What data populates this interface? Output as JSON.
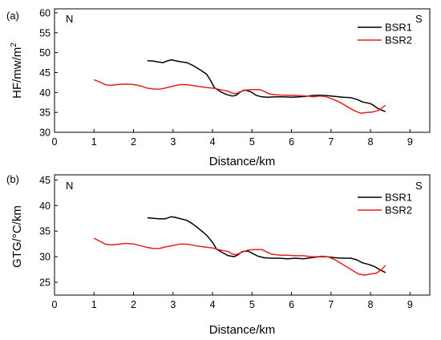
{
  "chart_data": [
    {
      "type": "line",
      "panel_label": "(a)",
      "ylabel": "HF/mw/m",
      "ylabel_sup": "2",
      "xlabel": "Distance/km",
      "left_marker": "N",
      "right_marker": "S",
      "xlim": [
        0,
        9.5
      ],
      "ylim": [
        30,
        61
      ],
      "xticks": [
        0,
        1,
        2,
        3,
        4,
        5,
        6,
        7,
        8,
        9
      ],
      "yticks": [
        30,
        35,
        40,
        45,
        50,
        55,
        60
      ],
      "legend_position": "top-right",
      "series": [
        {
          "name": "BSR1",
          "color": "#000000",
          "points": [
            [
              2.35,
              48.0
            ],
            [
              2.5,
              47.9
            ],
            [
              2.6,
              47.7
            ],
            [
              2.75,
              47.5
            ],
            [
              2.85,
              47.9
            ],
            [
              2.95,
              48.2
            ],
            [
              3.05,
              48.0
            ],
            [
              3.2,
              47.7
            ],
            [
              3.35,
              47.5
            ],
            [
              3.5,
              46.8
            ],
            [
              3.7,
              45.6
            ],
            [
              3.85,
              44.6
            ],
            [
              3.95,
              43.0
            ],
            [
              4.05,
              41.2
            ],
            [
              4.2,
              40.2
            ],
            [
              4.35,
              39.5
            ],
            [
              4.5,
              39.1
            ],
            [
              4.6,
              39.3
            ],
            [
              4.7,
              40.1
            ],
            [
              4.8,
              40.6
            ],
            [
              4.9,
              40.4
            ],
            [
              5.0,
              40.0
            ],
            [
              5.1,
              39.3
            ],
            [
              5.25,
              38.9
            ],
            [
              5.4,
              38.8
            ],
            [
              5.6,
              38.9
            ],
            [
              5.8,
              38.9
            ],
            [
              6.0,
              38.8
            ],
            [
              6.2,
              38.9
            ],
            [
              6.35,
              39.0
            ],
            [
              6.5,
              39.2
            ],
            [
              6.7,
              39.3
            ],
            [
              6.9,
              39.2
            ],
            [
              7.1,
              39.0
            ],
            [
              7.3,
              38.8
            ],
            [
              7.5,
              38.7
            ],
            [
              7.65,
              38.3
            ],
            [
              7.8,
              37.6
            ],
            [
              8.0,
              37.2
            ],
            [
              8.1,
              36.6
            ],
            [
              8.2,
              35.9
            ],
            [
              8.3,
              35.5
            ],
            [
              8.38,
              35.2
            ]
          ]
        },
        {
          "name": "BSR2",
          "color": "#e8201a",
          "points": [
            [
              1.0,
              43.2
            ],
            [
              1.15,
              42.6
            ],
            [
              1.3,
              41.9
            ],
            [
              1.45,
              41.8
            ],
            [
              1.6,
              42.0
            ],
            [
              1.8,
              42.1
            ],
            [
              2.0,
              42.0
            ],
            [
              2.2,
              41.6
            ],
            [
              2.35,
              41.1
            ],
            [
              2.5,
              40.9
            ],
            [
              2.65,
              40.8
            ],
            [
              2.8,
              41.1
            ],
            [
              3.0,
              41.6
            ],
            [
              3.2,
              42.0
            ],
            [
              3.4,
              41.9
            ],
            [
              3.6,
              41.6
            ],
            [
              3.8,
              41.3
            ],
            [
              4.0,
              41.1
            ],
            [
              4.2,
              40.7
            ],
            [
              4.4,
              40.3
            ],
            [
              4.5,
              39.8
            ],
            [
              4.6,
              39.7
            ],
            [
              4.7,
              40.2
            ],
            [
              4.85,
              40.6
            ],
            [
              5.0,
              40.7
            ],
            [
              5.2,
              40.7
            ],
            [
              5.3,
              40.3
            ],
            [
              5.45,
              39.6
            ],
            [
              5.6,
              39.4
            ],
            [
              5.8,
              39.3
            ],
            [
              6.0,
              39.3
            ],
            [
              6.2,
              39.2
            ],
            [
              6.4,
              39.1
            ],
            [
              6.55,
              38.9
            ],
            [
              6.7,
              39.1
            ],
            [
              6.85,
              39.0
            ],
            [
              7.0,
              38.5
            ],
            [
              7.15,
              37.9
            ],
            [
              7.3,
              37.1
            ],
            [
              7.45,
              36.2
            ],
            [
              7.6,
              35.4
            ],
            [
              7.75,
              34.8
            ],
            [
              7.9,
              35.0
            ],
            [
              8.05,
              35.1
            ],
            [
              8.2,
              35.5
            ],
            [
              8.3,
              36.2
            ],
            [
              8.38,
              36.8
            ]
          ]
        }
      ]
    },
    {
      "type": "line",
      "panel_label": "(b)",
      "ylabel": "GTG/°C/km",
      "ylabel_sup": "",
      "xlabel": "Distance/km",
      "left_marker": "N",
      "right_marker": "S",
      "xlim": [
        0,
        9.5
      ],
      "ylim": [
        22.5,
        46
      ],
      "xticks": [
        0,
        1,
        2,
        3,
        4,
        5,
        6,
        7,
        8,
        9
      ],
      "yticks": [
        25,
        30,
        35,
        40,
        45
      ],
      "legend_position": "top-right",
      "series": [
        {
          "name": "BSR1",
          "color": "#000000",
          "points": [
            [
              2.35,
              37.6
            ],
            [
              2.5,
              37.5
            ],
            [
              2.65,
              37.4
            ],
            [
              2.8,
              37.4
            ],
            [
              2.95,
              37.8
            ],
            [
              3.05,
              37.7
            ],
            [
              3.2,
              37.4
            ],
            [
              3.35,
              37.1
            ],
            [
              3.5,
              36.4
            ],
            [
              3.65,
              35.5
            ],
            [
              3.85,
              34.2
            ],
            [
              4.0,
              32.8
            ],
            [
              4.1,
              31.5
            ],
            [
              4.25,
              30.8
            ],
            [
              4.4,
              30.2
            ],
            [
              4.55,
              30.0
            ],
            [
              4.65,
              30.4
            ],
            [
              4.75,
              31.0
            ],
            [
              4.9,
              31.1
            ],
            [
              5.0,
              30.7
            ],
            [
              5.15,
              30.1
            ],
            [
              5.3,
              29.8
            ],
            [
              5.5,
              29.7
            ],
            [
              5.7,
              29.7
            ],
            [
              5.9,
              29.6
            ],
            [
              6.1,
              29.7
            ],
            [
              6.3,
              29.6
            ],
            [
              6.5,
              29.8
            ],
            [
              6.7,
              30.0
            ],
            [
              6.9,
              30.0
            ],
            [
              7.1,
              29.8
            ],
            [
              7.3,
              29.7
            ],
            [
              7.5,
              29.7
            ],
            [
              7.65,
              29.4
            ],
            [
              7.8,
              28.8
            ],
            [
              7.95,
              28.5
            ],
            [
              8.1,
              28.1
            ],
            [
              8.2,
              27.6
            ],
            [
              8.3,
              27.2
            ],
            [
              8.38,
              26.9
            ]
          ]
        },
        {
          "name": "BSR2",
          "color": "#e8201a",
          "points": [
            [
              1.0,
              33.6
            ],
            [
              1.15,
              33.0
            ],
            [
              1.3,
              32.4
            ],
            [
              1.45,
              32.3
            ],
            [
              1.6,
              32.4
            ],
            [
              1.8,
              32.6
            ],
            [
              2.0,
              32.5
            ],
            [
              2.2,
              32.1
            ],
            [
              2.35,
              31.8
            ],
            [
              2.5,
              31.6
            ],
            [
              2.65,
              31.6
            ],
            [
              2.8,
              31.9
            ],
            [
              3.0,
              32.2
            ],
            [
              3.2,
              32.5
            ],
            [
              3.4,
              32.4
            ],
            [
              3.6,
              32.1
            ],
            [
              3.8,
              31.9
            ],
            [
              4.0,
              31.7
            ],
            [
              4.2,
              31.3
            ],
            [
              4.4,
              31.0
            ],
            [
              4.5,
              30.5
            ],
            [
              4.6,
              30.4
            ],
            [
              4.75,
              30.9
            ],
            [
              4.9,
              31.3
            ],
            [
              5.05,
              31.4
            ],
            [
              5.25,
              31.4
            ],
            [
              5.35,
              31.0
            ],
            [
              5.5,
              30.5
            ],
            [
              5.7,
              30.3
            ],
            [
              5.9,
              30.3
            ],
            [
              6.1,
              30.2
            ],
            [
              6.3,
              30.2
            ],
            [
              6.5,
              30.0
            ],
            [
              6.65,
              30.0
            ],
            [
              6.8,
              30.1
            ],
            [
              6.95,
              29.9
            ],
            [
              7.1,
              29.4
            ],
            [
              7.25,
              28.7
            ],
            [
              7.4,
              28.0
            ],
            [
              7.55,
              27.3
            ],
            [
              7.7,
              26.6
            ],
            [
              7.85,
              26.4
            ],
            [
              8.0,
              26.6
            ],
            [
              8.15,
              26.8
            ],
            [
              8.28,
              27.5
            ],
            [
              8.38,
              28.3
            ]
          ]
        }
      ]
    }
  ]
}
